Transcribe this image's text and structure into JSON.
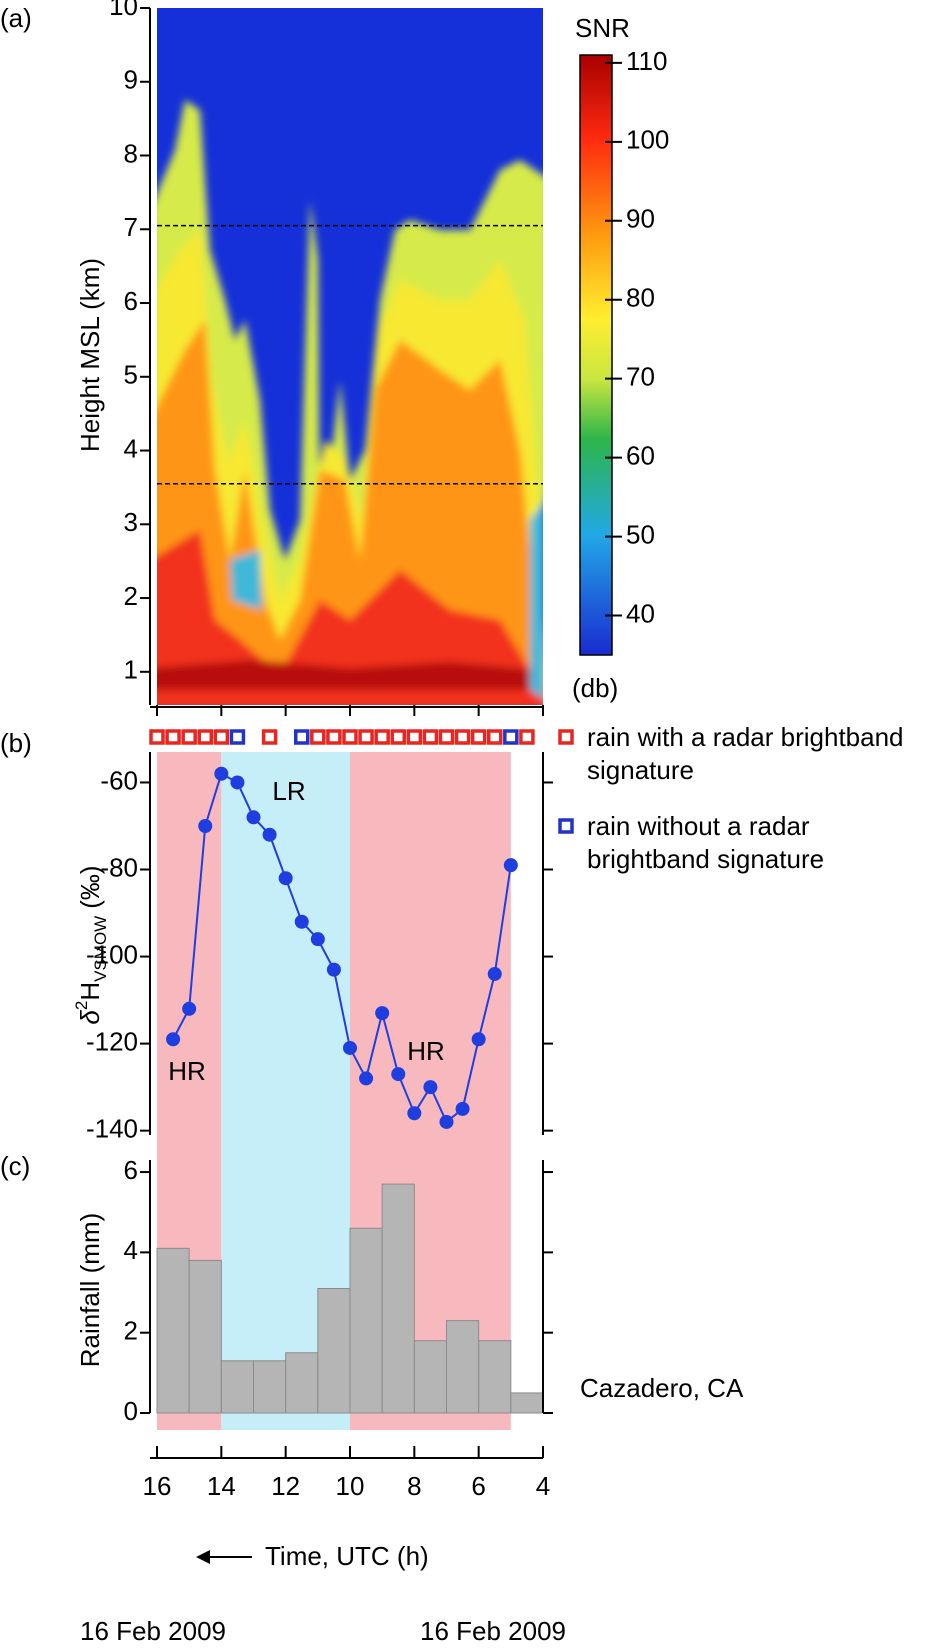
{
  "chart_data": [
    {
      "type": "heatmap",
      "panel": "(a)",
      "ylabel": "Height MSL (km)",
      "ylim": [
        0.55,
        10
      ],
      "yticks": [
        1,
        2,
        3,
        4,
        5,
        6,
        7,
        8,
        9,
        10
      ],
      "xlim": [
        16,
        4
      ],
      "reference_lines": [
        7.05,
        3.55
      ],
      "colorbar": {
        "title": "SNR",
        "unit": "(db)",
        "lim": [
          35,
          111
        ],
        "ticks": [
          40,
          50,
          60,
          70,
          80,
          90,
          100,
          110
        ]
      }
    },
    {
      "type": "line",
      "panel": "(b)",
      "ylabel": [
        "δ",
        "2",
        "H",
        "VSMOW",
        "(‰)"
      ],
      "ylim": [
        -141,
        -53
      ],
      "yticks": [
        -60,
        -80,
        -100,
        -120,
        -140
      ],
      "xlim": [
        16,
        4
      ],
      "x": [
        15.5,
        15,
        14.5,
        14,
        13.5,
        13,
        12.5,
        12,
        11.5,
        11,
        10.5,
        10,
        9.5,
        9,
        8.5,
        8,
        7.5,
        7,
        6.5,
        6,
        5.5,
        5
      ],
      "values": [
        -119,
        -112,
        -70,
        -58,
        -60,
        -68,
        -72,
        -82,
        -92,
        -96,
        -103,
        -121,
        -128,
        -113,
        -127,
        -136,
        -130,
        -138,
        -135,
        -119,
        -104,
        -79
      ],
      "color": "#1f3ee0",
      "regions": [
        {
          "from": 16,
          "to": 14,
          "color": "#f8b9be"
        },
        {
          "from": 14,
          "to": 10,
          "color": "#c6eef9"
        },
        {
          "from": 10,
          "to": 5,
          "color": "#f8b9be"
        }
      ],
      "annotations": [
        "HR",
        "LR",
        "HR"
      ],
      "rain_markers": [
        {
          "name": "rain with a radar brightband signature",
          "color": "#e8261f",
          "x": [
            16,
            15.5,
            15,
            14.5,
            14,
            12.5,
            11,
            10.5,
            10,
            9.5,
            9,
            8.5,
            8,
            7.5,
            7,
            6.5,
            6,
            5.5,
            4.5
          ]
        },
        {
          "name": "rain without a radar brightband signature",
          "color": "#2233cc",
          "x": [
            13.5,
            11.5,
            5
          ]
        }
      ]
    },
    {
      "type": "histogram",
      "panel": "(c)",
      "ylabel": "Rainfall (mm)",
      "ylim": [
        0,
        6.3
      ],
      "yticks": [
        0,
        2,
        4,
        6
      ],
      "xlim": [
        16,
        4
      ],
      "xticks": [
        16,
        14,
        12,
        10,
        8,
        6,
        4
      ],
      "bins": [
        16,
        15,
        14,
        13,
        12,
        11,
        10,
        9,
        8,
        7,
        6,
        5,
        4
      ],
      "values": [
        4.1,
        3.8,
        1.3,
        1.3,
        1.5,
        3.1,
        4.6,
        5.7,
        1.8,
        2.3,
        1.8,
        0.5
      ],
      "color": "#b5b5b5",
      "xlabel": "Time, UTC (h)",
      "location": "Cazadero, CA",
      "dates": [
        "16 Feb 2009",
        "16 Feb 2009"
      ]
    }
  ]
}
